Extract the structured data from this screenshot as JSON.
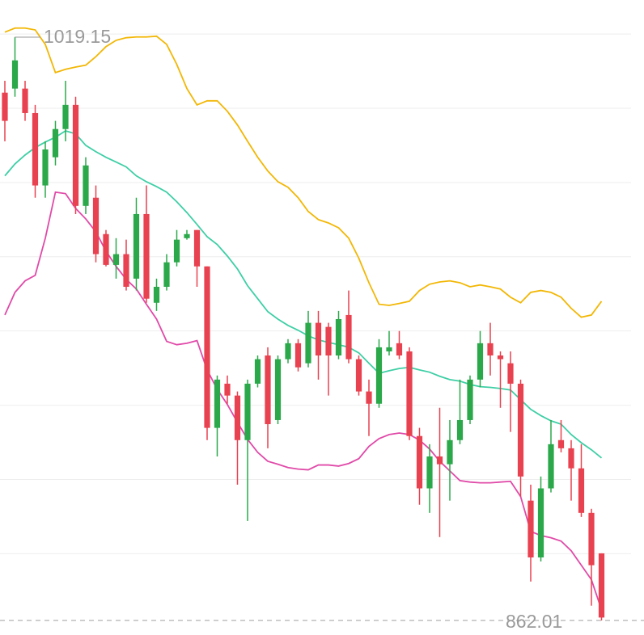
{
  "chart_data": {
    "type": "candlestick",
    "up_color": "#2aa84a",
    "down_color": "#e8414f",
    "open": [
      1004.2,
      1005.3,
      1005.3,
      998.7,
      979.2,
      986.8,
      994.4,
      1000.9,
      973.7,
      975.9,
      966.1,
      957.8,
      960.7,
      954.1,
      971.5,
      947.6,
      951.9,
      958.5,
      965.0,
      967.2,
      957.4,
      913.9,
      925.8,
      922.6,
      910.6,
      925.8,
      933.4,
      916.0,
      932.4,
      936.7,
      931.3,
      942.2,
      941.1,
      933.4,
      944.3,
      932.4,
      923.7,
      920.4,
      934.5,
      936.7,
      934.5,
      911.7,
      897.6,
      906.2,
      904.1,
      910.6,
      916.0,
      926.9,
      936.7,
      933.4,
      931.3,
      925.8,
      894.3,
      879.0,
      897.6,
      910.6,
      908.4,
      903.0,
      891.0,
      880.1
    ],
    "high": [
      1007.4,
      1019.15,
      1007.4,
      1000.9,
      991.1,
      996.6,
      1007.4,
      1003.1,
      986.8,
      979.2,
      967.2,
      965.0,
      964.6,
      975.9,
      979.2,
      954.1,
      960.7,
      967.2,
      967.2,
      967.2,
      957.4,
      928.0,
      928.0,
      923.7,
      926.9,
      933.4,
      935.6,
      933.4,
      937.8,
      937.8,
      945.4,
      945.4,
      942.2,
      945.4,
      950.9,
      933.4,
      926.9,
      937.8,
      940.0,
      940.0,
      935.6,
      913.9,
      909.5,
      919.3,
      916.0,
      926.9,
      928.0,
      940.0,
      942.2,
      934.5,
      934.5,
      926.9,
      898.6,
      900.8,
      916.0,
      916.0,
      910.6,
      909.5,
      892.1,
      880.1
    ],
    "low": [
      991.1,
      1003.1,
      996.6,
      975.9,
      975.9,
      984.6,
      991.1,
      971.5,
      971.5,
      958.5,
      957.4,
      954.1,
      950.9,
      950.9,
      947.6,
      945.4,
      950.9,
      957.4,
      964.6,
      951.9,
      910.6,
      906.2,
      920.4,
      898.6,
      888.8,
      924.8,
      908.4,
      914.9,
      931.3,
      929.1,
      930.2,
      926.9,
      922.6,
      932.4,
      931.3,
      922.6,
      911.7,
      919.3,
      933.4,
      932.4,
      910.6,
      893.2,
      891.0,
      884.5,
      894.3,
      909.5,
      914.9,
      924.8,
      928.0,
      919.3,
      912.8,
      895.4,
      872.5,
      877.9,
      896.5,
      907.3,
      894.3,
      889.9,
      866.0,
      862.01
    ],
    "close": [
      996.6,
      1012.9,
      998.7,
      979.2,
      988.9,
      994.4,
      1000.9,
      973.7,
      984.6,
      960.7,
      957.8,
      960.7,
      951.9,
      971.5,
      948.7,
      951.9,
      958.5,
      964.6,
      966.1,
      957.4,
      913.9,
      926.9,
      922.6,
      910.6,
      925.8,
      932.4,
      914.9,
      932.4,
      936.7,
      930.2,
      942.2,
      933.4,
      933.4,
      943.2,
      932.4,
      923.7,
      920.4,
      935.6,
      935.6,
      933.4,
      911.7,
      897.6,
      906.2,
      904.1,
      910.6,
      916.0,
      926.9,
      936.7,
      933.4,
      932.4,
      925.8,
      900.8,
      879.0,
      897.6,
      909.5,
      908.4,
      903.0,
      891.0,
      876.9,
      862.8
    ],
    "bands": [
      {
        "color": "#f2b705",
        "values": [
          1020.5,
          1021.6,
          1021.6,
          1021.1,
          1017.2,
          1009.6,
          1010.5,
          1011.1,
          1011.6,
          1013.9,
          1016.6,
          1018.3,
          1019.0,
          1019.2,
          1019.2,
          1019.4,
          1017.2,
          1011.8,
          1005.3,
          1000.9,
          1002.0,
          1002.0,
          999.2,
          995.5,
          991.1,
          986.8,
          983.1,
          980.2,
          978.7,
          975.9,
          972.2,
          970.0,
          969.1,
          967.8,
          965.0,
          959.6,
          953.0,
          947.2,
          946.9,
          947.4,
          948.0,
          950.9,
          952.6,
          953.2,
          953.5,
          953.0,
          951.9,
          952.4,
          951.9,
          951.3,
          949.1,
          947.6,
          950.4,
          950.9,
          950.4,
          949.1,
          946.1,
          943.7,
          944.3,
          948.0
        ]
      },
      {
        "color": "#3ecfa5",
        "values": [
          981.8,
          985.0,
          987.4,
          989.4,
          990.9,
          992.2,
          993.9,
          993.1,
          990.0,
          988.3,
          986.8,
          985.5,
          984.2,
          981.8,
          980.2,
          978.9,
          977.4,
          974.8,
          971.9,
          968.7,
          965.4,
          963.3,
          960.2,
          956.7,
          952.2,
          948.7,
          945.2,
          943.2,
          941.5,
          940.2,
          938.7,
          937.6,
          936.9,
          936.3,
          935.6,
          934.1,
          931.3,
          928.6,
          929.3,
          929.9,
          930.2,
          929.5,
          928.9,
          927.8,
          926.9,
          926.5,
          925.6,
          925.0,
          924.8,
          924.5,
          924.1,
          921.5,
          918.9,
          917.2,
          915.8,
          914.9,
          912.1,
          909.9,
          908.0,
          905.8
        ]
      },
      {
        "color": "#e04aa8",
        "values": [
          944.3,
          950.4,
          953.5,
          955.0,
          965.0,
          977.4,
          977.0,
          973.0,
          970.2,
          966.7,
          961.5,
          957.4,
          953.9,
          951.3,
          947.2,
          943.2,
          937.2,
          936.3,
          936.7,
          937.4,
          929.5,
          924.3,
          920.2,
          915.4,
          910.8,
          907.3,
          904.9,
          904.1,
          903.2,
          902.8,
          902.6,
          903.9,
          903.9,
          903.6,
          904.3,
          905.6,
          908.9,
          911.0,
          912.1,
          912.5,
          912.1,
          910.6,
          908.2,
          904.9,
          902.3,
          899.7,
          899.3,
          899.1,
          899.1,
          899.3,
          899.5,
          895.4,
          886.0,
          884.9,
          884.3,
          883.4,
          880.8,
          876.9,
          873.0,
          864.9
        ]
      }
    ],
    "ylim": [
      858.1,
      1029.16
    ],
    "yticks": [
      1020,
      1000,
      980,
      960,
      940,
      920,
      900,
      880
    ],
    "grid": true,
    "high_label": 1019.15,
    "low_label": 862.01
  }
}
